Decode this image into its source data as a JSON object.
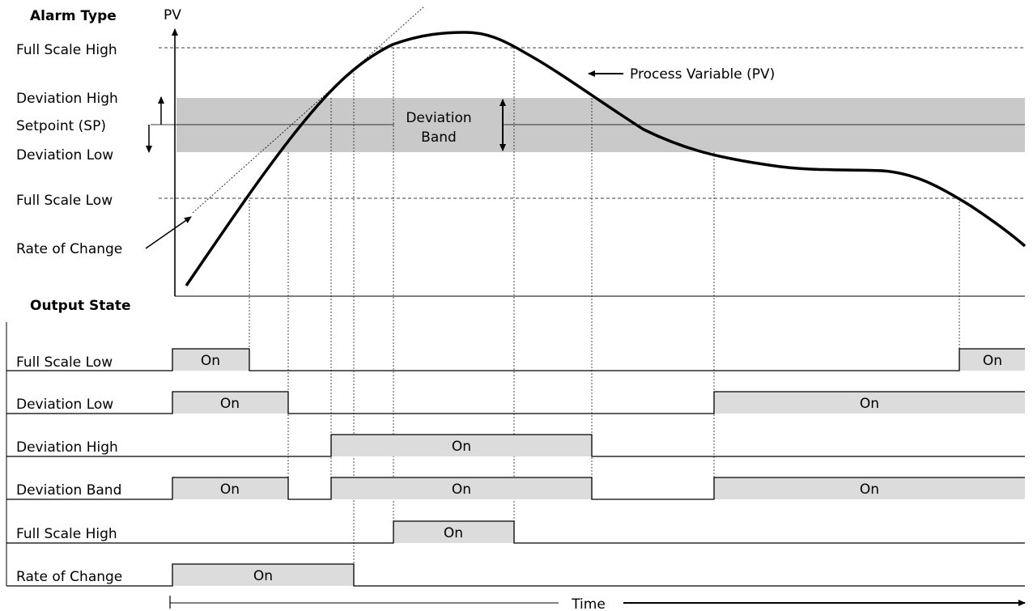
{
  "diagram": {
    "headers": {
      "alarm_type": "Alarm Type",
      "pv": "PV",
      "output_state": "Output State",
      "time": "Time"
    },
    "left_labels": {
      "full_scale_high": "Full Scale High",
      "deviation_high": "Deviation High",
      "setpoint": "Setpoint (SP)",
      "deviation_low": "Deviation Low",
      "full_scale_low": "Full Scale Low",
      "rate_of_change": "Rate of Change"
    },
    "annotations": {
      "process_variable": "Process Variable  (PV)",
      "deviation_band_line1": "Deviation",
      "deviation_band_line2": "Band"
    },
    "on_label": "On",
    "rows": [
      {
        "label": "Full Scale Low"
      },
      {
        "label": "Deviation Low"
      },
      {
        "label": "Deviation High"
      },
      {
        "label": "Deviation Band"
      },
      {
        "label": "Full Scale High"
      },
      {
        "label": "Rate of Change"
      }
    ]
  }
}
